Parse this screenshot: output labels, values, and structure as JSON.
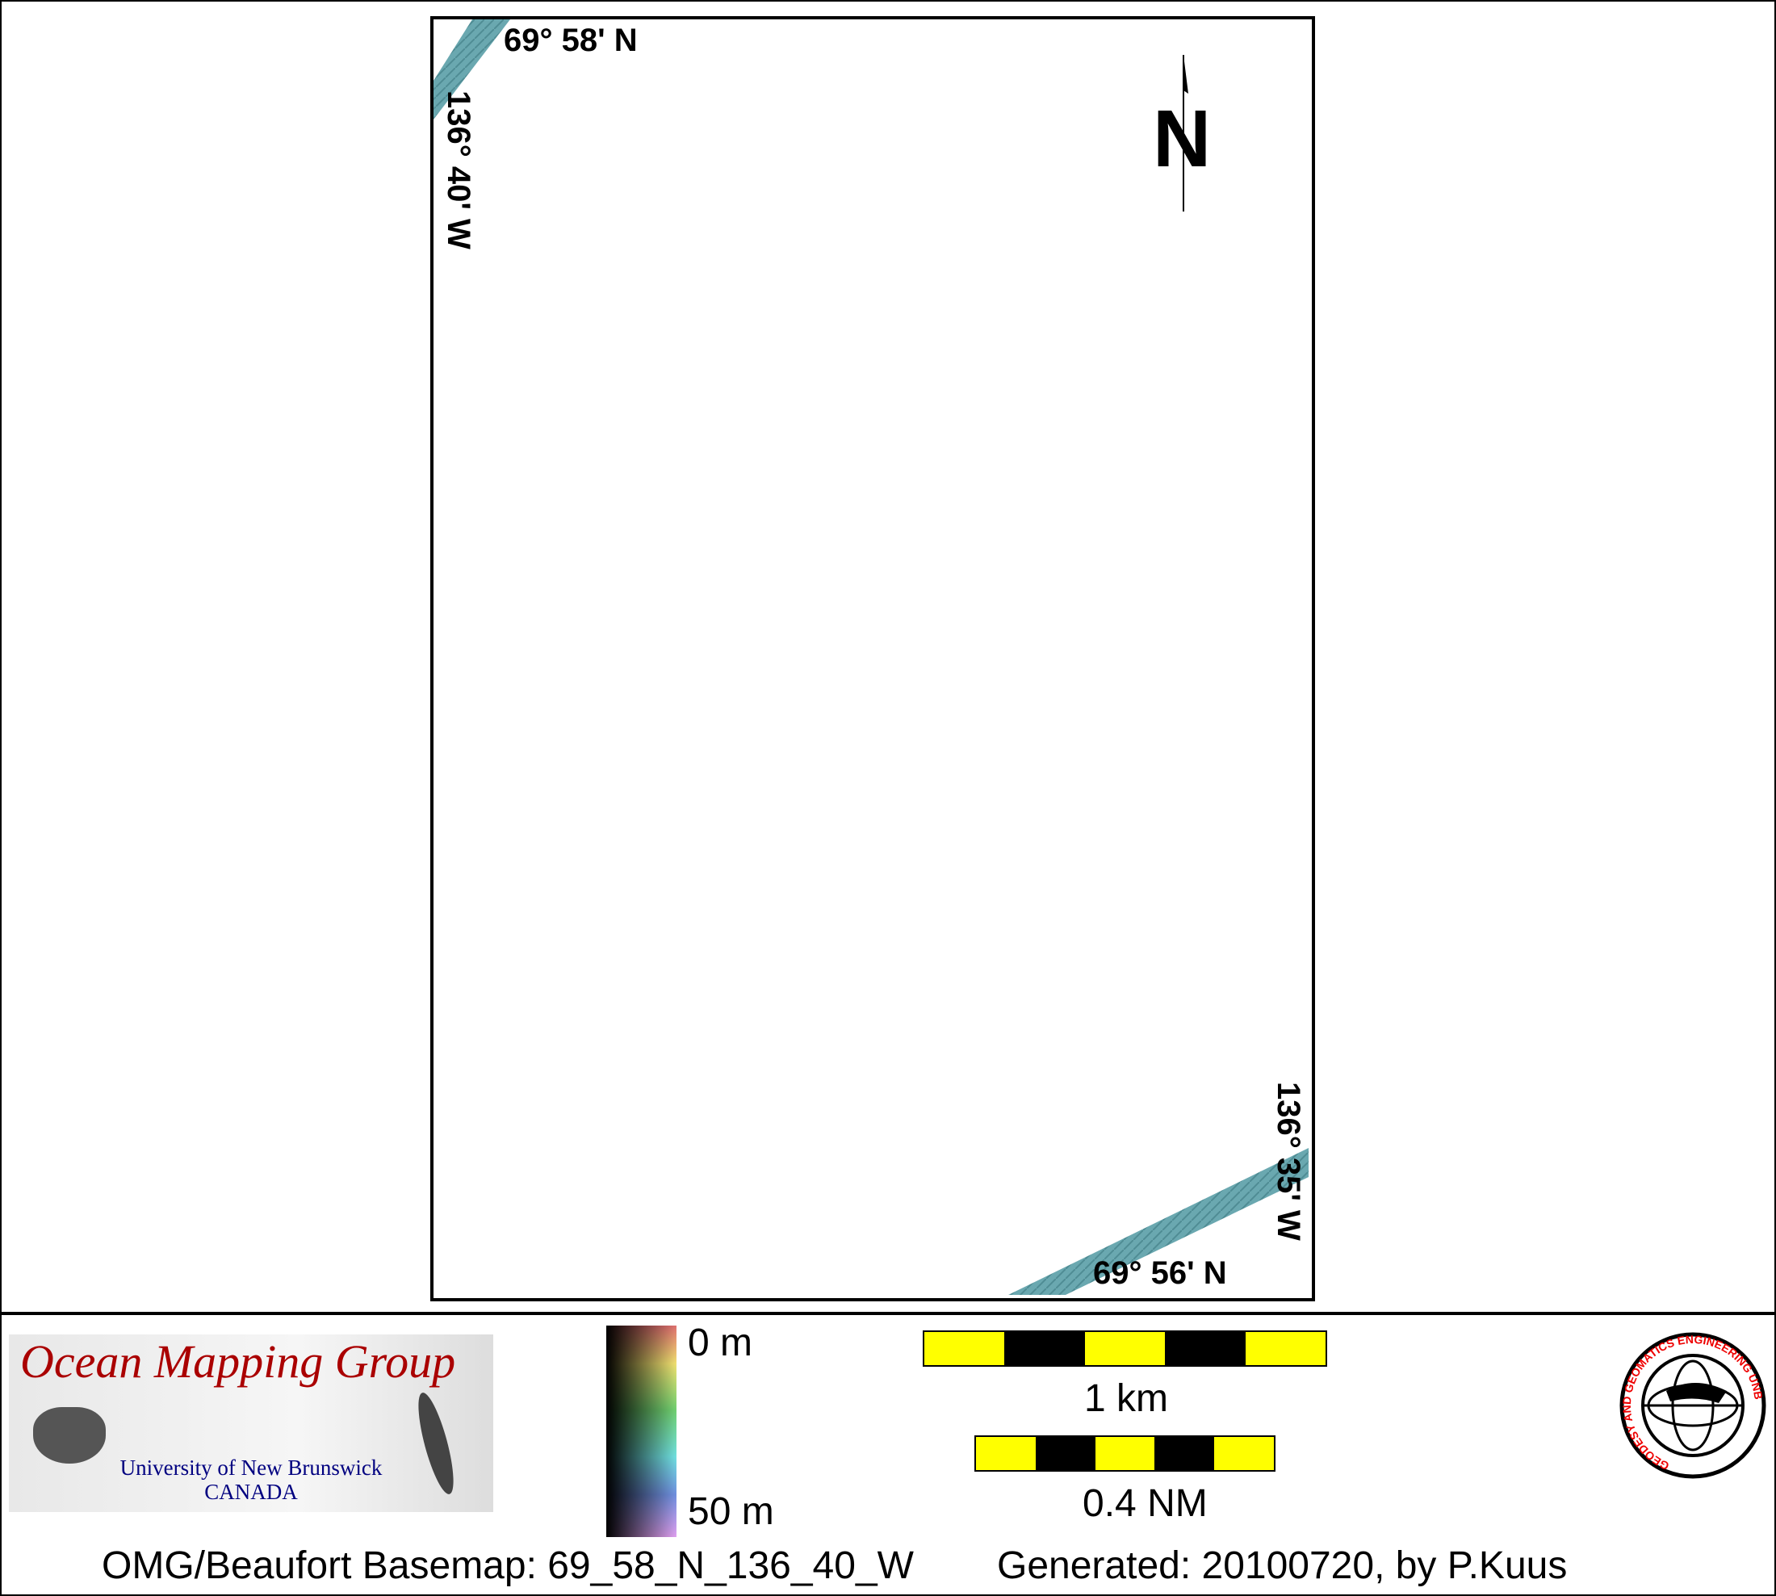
{
  "map": {
    "label_top_lat": "69° 58' N",
    "label_left_lon": "136° 40' W",
    "label_bottom_lat": "69° 56' N",
    "label_right_lon": "136° 35' W",
    "north_label": "N",
    "swath_color": "#6aa8b0"
  },
  "legend": {
    "logo_title": "Ocean Mapping Group",
    "logo_line1": "University of New Brunswick",
    "logo_line2": "CANADA",
    "colorbar_top": "0 m",
    "colorbar_bottom": "50 m",
    "scale_km_label": "1 km",
    "scale_nm_label": "0.4 NM",
    "scale_colors": [
      "#ffff00",
      "#000000"
    ],
    "unb_seal_text": "GEODESY AND GEOMATICS ENGINEERING UNB"
  },
  "footer": {
    "basemap": "OMG/Beaufort Basemap: 69_58_N_136_40_W",
    "generated": "Generated: 20100720, by P.Kuus"
  }
}
